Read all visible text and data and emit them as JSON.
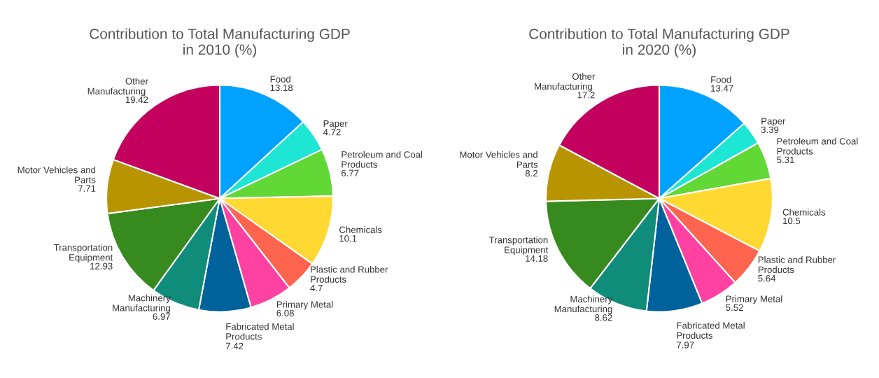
{
  "chart_data": [
    {
      "type": "pie",
      "title": "Contribution to Total Manufacturing GDP in 2010 (%)",
      "categories": [
        "Food",
        "Paper ",
        "Petroleum and Coal Products",
        "Chemicals",
        "Plastic and Rubber Products",
        "Primary Metal",
        "Fabricated Metal Products",
        "Machinery Manufacturing",
        "Transportation Equipment",
        "Motor Vehicles and Parts",
        "Other Manufacturing "
      ],
      "values": [
        13.18,
        4.72,
        6.77,
        10.1,
        4.7,
        6.08,
        7.42,
        6.97,
        12.93,
        7.71,
        19.42
      ],
      "colors": [
        "#00a2ff",
        "#1de6d4",
        "#61d836",
        "#ffd932",
        "#ff644e",
        "#ff42a1",
        "#00629b",
        "#0f8c7a",
        "#378a1e",
        "#b89500",
        "#c3005e"
      ],
      "data_labels": true
    },
    {
      "type": "pie",
      "title": "Contribution to Total Manufacturing GDP in 2020 (%)",
      "categories": [
        "Food",
        "Paper ",
        "Petroleum and Coal Products",
        "Chemicals",
        "Plastic and Rubber Products",
        "Primary Metal",
        "Fabricated Metal Products",
        "Machinery Manufacturing",
        "Transportation Equipment",
        "Motor Vehicles and Parts",
        "Other Manufacturing "
      ],
      "values": [
        13.47,
        3.39,
        5.31,
        10.5,
        5.64,
        5.52,
        7.97,
        8.62,
        14.18,
        8.2,
        17.2
      ],
      "colors": [
        "#00a2ff",
        "#1de6d4",
        "#61d836",
        "#ffd932",
        "#ff644e",
        "#ff42a1",
        "#00629b",
        "#0f8c7a",
        "#378a1e",
        "#b89500",
        "#c3005e"
      ],
      "data_labels": true
    }
  ]
}
